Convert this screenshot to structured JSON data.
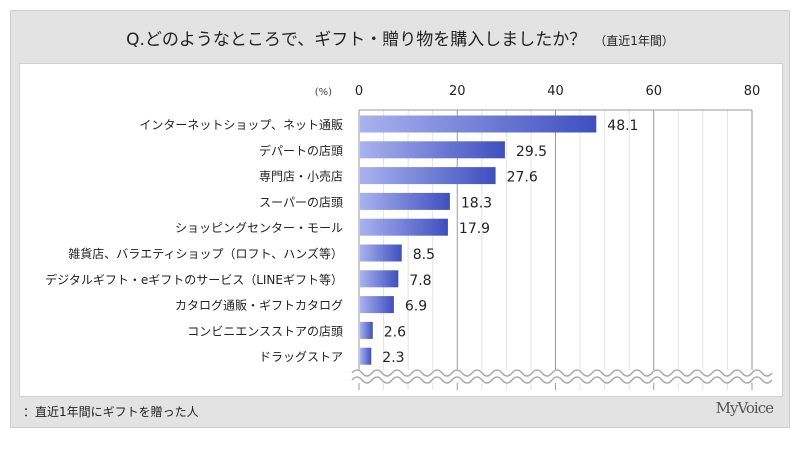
{
  "chart_data": {
    "type": "bar",
    "title": "Q.どのようなところで、ギフト・贈り物を購入しましたか？",
    "subtitle": "（直近1年間）",
    "unit_label": "(%)",
    "xlim": [
      0,
      80
    ],
    "ticks": [
      "0",
      "20",
      "40",
      "60",
      "80"
    ],
    "categories": [
      "インターネットショップ、ネット通販",
      "デパートの店頭",
      "専門店・小売店",
      "スーパーの店頭",
      "ショッピングセンター・モール",
      "雑貨店、バラエティショップ（ロフト、ハンズ等）",
      "デジタルギフト・eギフトのサービス（LINEギフト等）",
      "カタログ通販・ギフトカタログ",
      "コンビニエンスストアの店頭",
      "ドラッグストア"
    ],
    "values": [
      48.1,
      29.5,
      27.6,
      18.3,
      17.9,
      8.5,
      7.8,
      6.9,
      2.6,
      2.3
    ],
    "grid": true,
    "bar_color_start": "#a9b2ef",
    "bar_color_end": "#3e4fbf"
  },
  "footnote": "：直近1年間にギフトを贈った人",
  "logo": "MyVoice"
}
